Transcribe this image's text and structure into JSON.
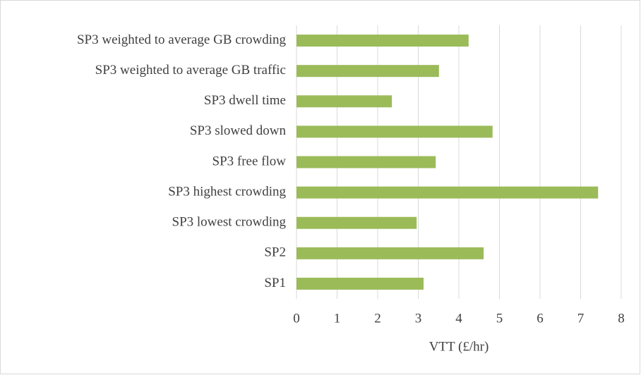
{
  "chart_data": {
    "type": "hbar",
    "x_label": "VTT (£/hr)",
    "categories": [
      "SP1",
      "SP2",
      "SP3 lowest crowding",
      "SP3 highest crowding",
      "SP3 free flow",
      "SP3 slowed down",
      "SP3 dwell time",
      "SP3 weighted to average GB traffic",
      "SP3 weighted to average GB crowding"
    ],
    "values": [
      3.13,
      4.61,
      2.96,
      7.43,
      3.43,
      4.83,
      2.35,
      3.51,
      4.24
    ],
    "color": "#9bbb59",
    "xlim": [
      0,
      8
    ],
    "xticks": [
      0,
      1,
      2,
      3,
      4,
      5,
      6,
      7,
      8
    ],
    "grid": true
  }
}
